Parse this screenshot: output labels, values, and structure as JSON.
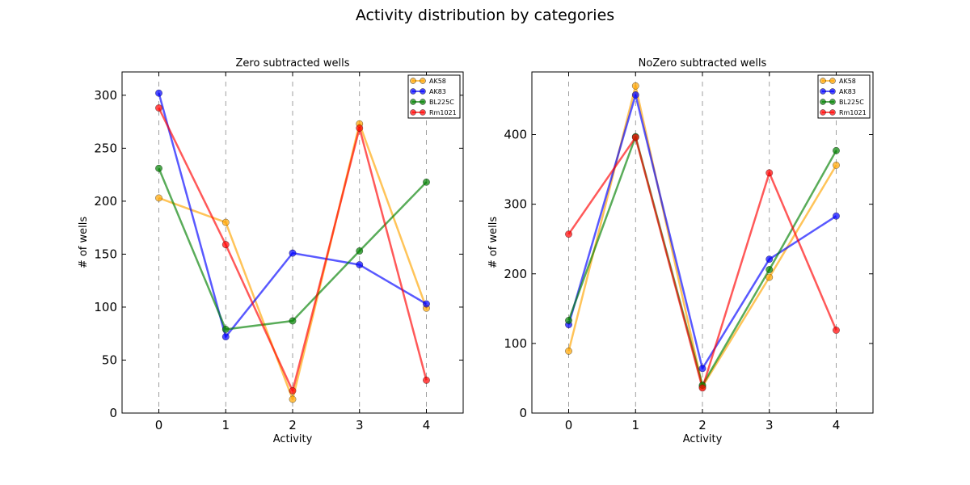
{
  "figure": {
    "title": "Activity distribution by categories"
  },
  "series_colors": {
    "AK58": "#FFA500",
    "AK83": "#0000FF",
    "BL225C": "#008000",
    "Rm1021": "#FF0000"
  },
  "chart_data": [
    {
      "type": "line",
      "title": "Zero subtracted wells",
      "xlabel": "Activity",
      "ylabel": "# of wells",
      "x": [
        0,
        1,
        2,
        3,
        4
      ],
      "xlim": [
        -0.55,
        4.55
      ],
      "ylim": [
        0,
        322
      ],
      "yticks": [
        0,
        50,
        100,
        150,
        200,
        250,
        300
      ],
      "xticks": [
        0,
        1,
        2,
        3,
        4
      ],
      "grid": "vertical dashed",
      "legend_position": "top-right",
      "series": [
        {
          "name": "AK58",
          "values": [
            203,
            180,
            13,
            273,
            99
          ]
        },
        {
          "name": "AK83",
          "values": [
            302,
            72,
            151,
            140,
            103
          ]
        },
        {
          "name": "BL225C",
          "values": [
            231,
            79,
            87,
            153,
            218
          ]
        },
        {
          "name": "Rm1021",
          "values": [
            288,
            159,
            21,
            269,
            31
          ]
        }
      ]
    },
    {
      "type": "line",
      "title": "NoZero subtracted wells",
      "xlabel": "Activity",
      "ylabel": "# of wells",
      "x": [
        0,
        1,
        2,
        3,
        4
      ],
      "xlim": [
        -0.55,
        4.55
      ],
      "ylim": [
        0,
        490
      ],
      "yticks": [
        0,
        100,
        200,
        300,
        400
      ],
      "xticks": [
        0,
        1,
        2,
        3,
        4
      ],
      "grid": "vertical dashed",
      "legend_position": "top-right",
      "series": [
        {
          "name": "AK58",
          "values": [
            89,
            470,
            38,
            195,
            356
          ]
        },
        {
          "name": "AK83",
          "values": [
            127,
            457,
            64,
            221,
            283
          ]
        },
        {
          "name": "BL225C",
          "values": [
            133,
            397,
            40,
            206,
            377
          ]
        },
        {
          "name": "Rm1021",
          "values": [
            257,
            396,
            36,
            345,
            119
          ]
        }
      ]
    }
  ]
}
